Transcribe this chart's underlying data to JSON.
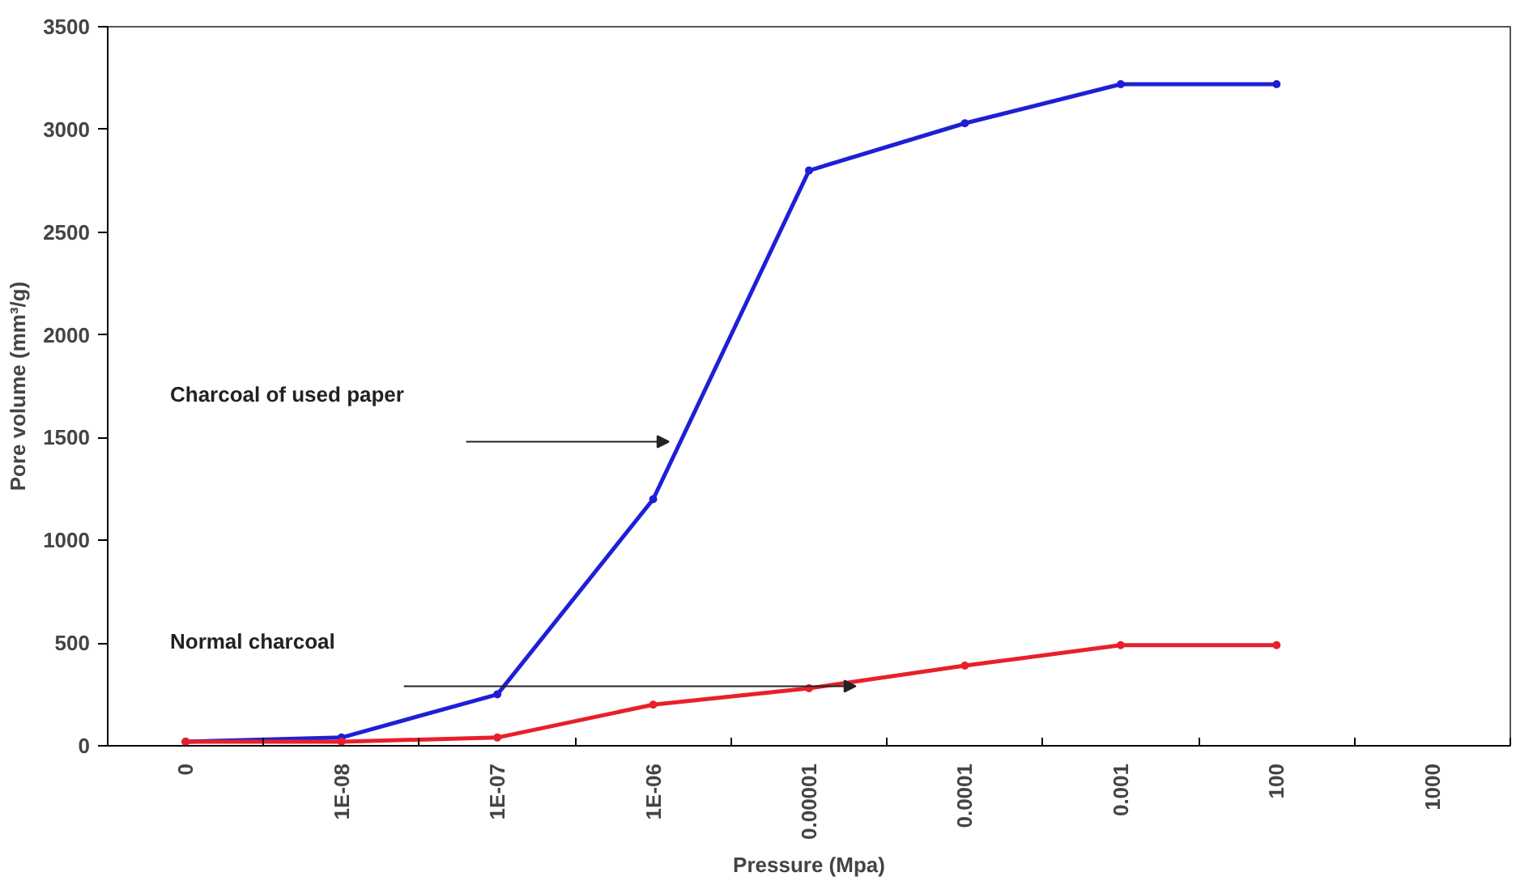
{
  "chart_data": {
    "type": "line",
    "xlabel": "Pressure (Mpa)",
    "ylabel": "Pore volume (mm³/g)",
    "categories": [
      "0",
      "1E-08",
      "1E-07",
      "1E-06",
      "0.00001",
      "0.0001",
      "0.001",
      "100",
      "1000"
    ],
    "series": [
      {
        "color": "#1f1fd6",
        "values": [
          20,
          40,
          250,
          1200,
          2800,
          3030,
          3220,
          3220,
          null
        ]
      },
      {
        "color": "#e8202a",
        "values": [
          20,
          20,
          40,
          200,
          280,
          390,
          490,
          490,
          null
        ]
      }
    ],
    "ylim": [
      0,
      3500
    ],
    "yticks": [
      0,
      500,
      1000,
      1500,
      2000,
      2500,
      3000,
      3500
    ],
    "grid": false,
    "marker": "circle",
    "line_style": "solid",
    "annotations": [
      "Charcoal of used paper",
      "Normal charcoal"
    ]
  }
}
